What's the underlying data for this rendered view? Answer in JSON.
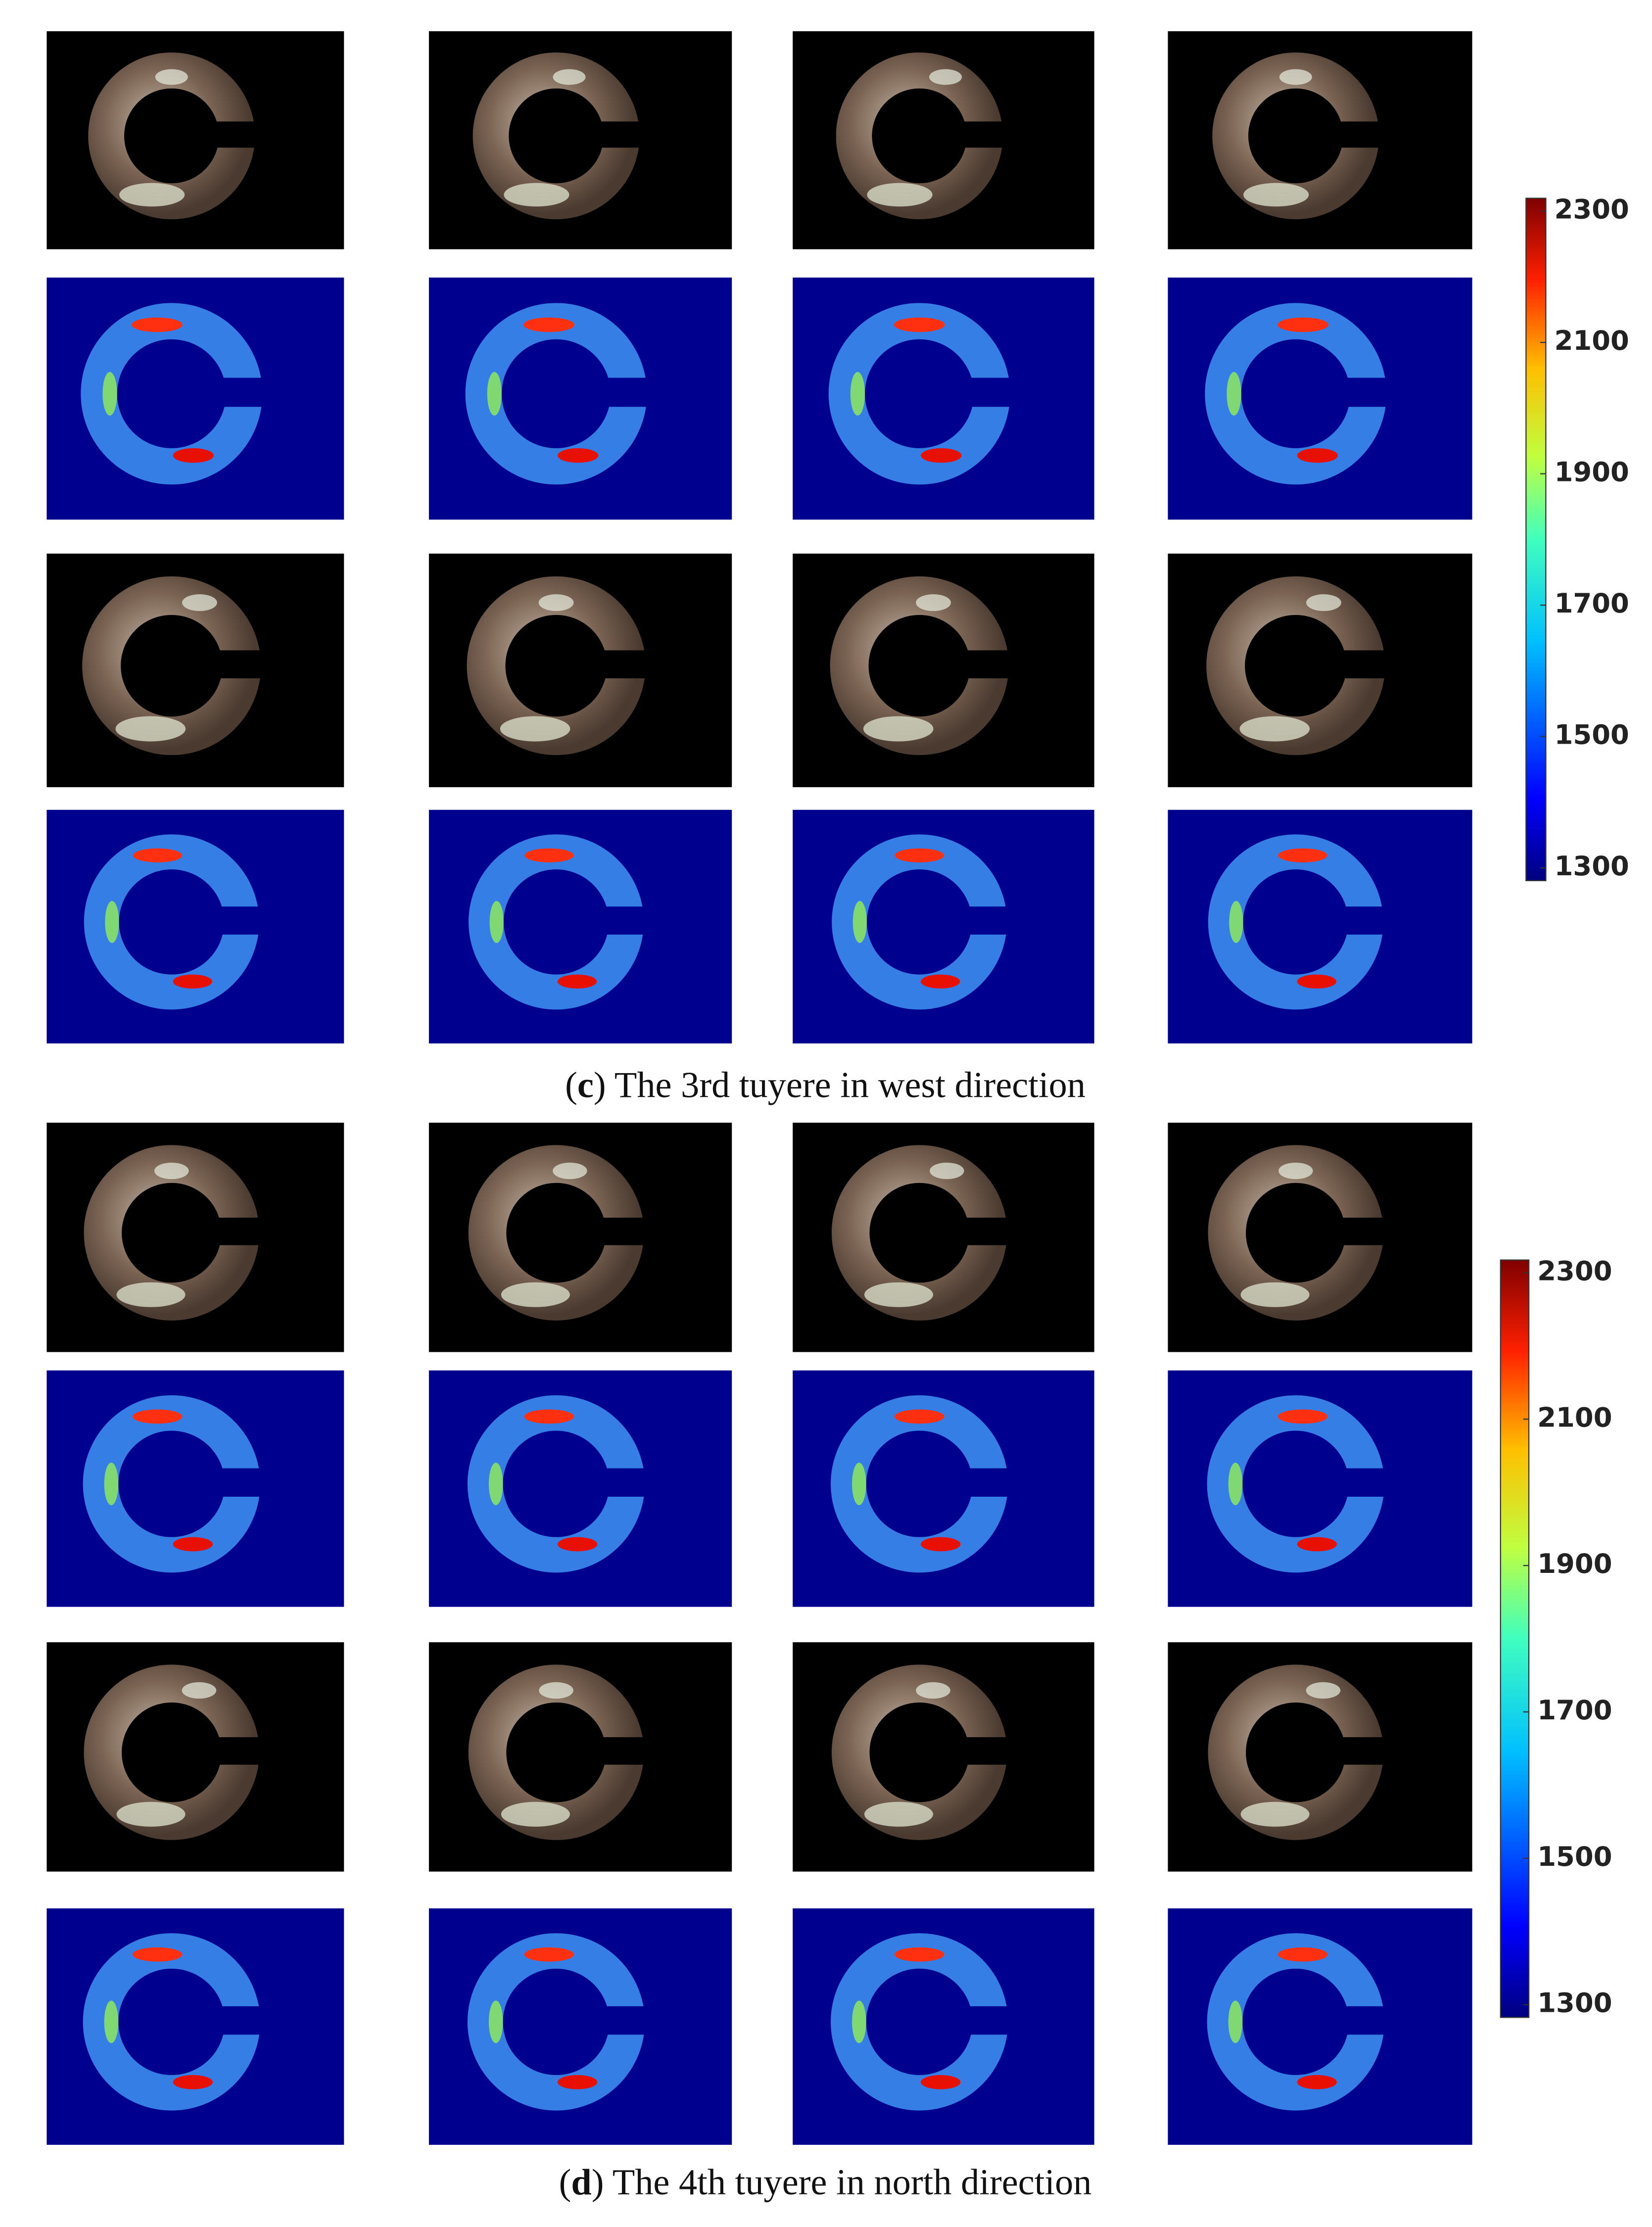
{
  "panels": [
    {
      "caption": {
        "prefix": "(",
        "letter": "c",
        "text": ") The 3rd tuyere in west direction"
      },
      "colorbar": {
        "ticks": [
          2300,
          2100,
          1900,
          1700,
          1500,
          1300
        ]
      }
    },
    {
      "caption": {
        "prefix": "(",
        "letter": "d",
        "text": ") The 4th tuyere in north direction"
      },
      "colorbar": {
        "ticks": [
          2300,
          2100,
          1900,
          1700,
          1500,
          1300
        ]
      }
    }
  ]
}
